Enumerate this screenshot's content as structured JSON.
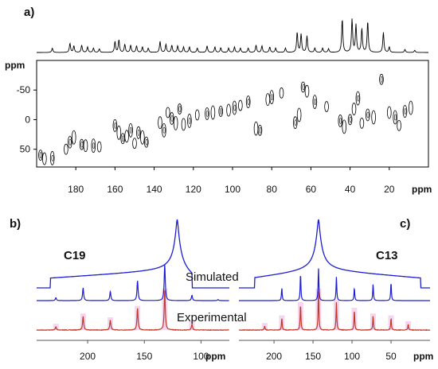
{
  "figure": {
    "panels": {
      "a": "a)",
      "b": "b)",
      "c": "c)"
    },
    "colors": {
      "black": "#000000",
      "blue": "#1c1cd6",
      "red": "#c0392b",
      "pink": "#f6d6ee",
      "axis": "#555555"
    }
  },
  "chart_data": [
    {
      "panel": "a",
      "type": "heatmap",
      "title": "",
      "xlabel": "ppm",
      "ylabel": "ppm",
      "xlim": [
        200,
        0
      ],
      "ylim": [
        -100,
        80
      ],
      "x_ticks": [
        180,
        160,
        140,
        120,
        100,
        80,
        60,
        40,
        20
      ],
      "y_ticks": [
        -50,
        0,
        50
      ],
      "projection_peaks": [
        {
          "ppm": 192,
          "height": 0.12
        },
        {
          "ppm": 183,
          "height": 0.25
        },
        {
          "ppm": 181,
          "height": 0.18
        },
        {
          "ppm": 177,
          "height": 0.2
        },
        {
          "ppm": 174,
          "height": 0.15
        },
        {
          "ppm": 171,
          "height": 0.12
        },
        {
          "ppm": 168,
          "height": 0.1
        },
        {
          "ppm": 160,
          "height": 0.3
        },
        {
          "ppm": 158,
          "height": 0.35
        },
        {
          "ppm": 155,
          "height": 0.22
        },
        {
          "ppm": 152,
          "height": 0.2
        },
        {
          "ppm": 149,
          "height": 0.18
        },
        {
          "ppm": 146,
          "height": 0.15
        },
        {
          "ppm": 143,
          "height": 0.12
        },
        {
          "ppm": 137,
          "height": 0.3
        },
        {
          "ppm": 134,
          "height": 0.22
        },
        {
          "ppm": 131,
          "height": 0.2
        },
        {
          "ppm": 128,
          "height": 0.18
        },
        {
          "ppm": 125,
          "height": 0.15
        },
        {
          "ppm": 122,
          "height": 0.15
        },
        {
          "ppm": 118,
          "height": 0.12
        },
        {
          "ppm": 113,
          "height": 0.18
        },
        {
          "ppm": 109,
          "height": 0.15
        },
        {
          "ppm": 106,
          "height": 0.13
        },
        {
          "ppm": 102,
          "height": 0.12
        },
        {
          "ppm": 99,
          "height": 0.15
        },
        {
          "ppm": 96,
          "height": 0.12
        },
        {
          "ppm": 92,
          "height": 0.12
        },
        {
          "ppm": 88,
          "height": 0.2
        },
        {
          "ppm": 85,
          "height": 0.18
        },
        {
          "ppm": 81,
          "height": 0.15
        },
        {
          "ppm": 78,
          "height": 0.12
        },
        {
          "ppm": 73,
          "height": 0.12
        },
        {
          "ppm": 67,
          "height": 0.55
        },
        {
          "ppm": 65,
          "height": 0.5
        },
        {
          "ppm": 62,
          "height": 0.45
        },
        {
          "ppm": 58,
          "height": 0.12
        },
        {
          "ppm": 54,
          "height": 0.12
        },
        {
          "ppm": 51,
          "height": 0.1
        },
        {
          "ppm": 44,
          "height": 0.92
        },
        {
          "ppm": 39,
          "height": 0.9
        },
        {
          "ppm": 37,
          "height": 0.75
        },
        {
          "ppm": 34,
          "height": 0.65
        },
        {
          "ppm": 31,
          "height": 0.85
        },
        {
          "ppm": 23,
          "height": 0.55
        },
        {
          "ppm": 20,
          "height": 0.15
        },
        {
          "ppm": 12,
          "height": 0.08
        },
        {
          "ppm": 7,
          "height": 0.06
        }
      ],
      "contours": [
        {
          "x": 198,
          "y": 60
        },
        {
          "x": 196,
          "y": 66
        },
        {
          "x": 192,
          "y": 65
        },
        {
          "x": 185,
          "y": 50
        },
        {
          "x": 183,
          "y": 38
        },
        {
          "x": 181,
          "y": 30
        },
        {
          "x": 177,
          "y": 42
        },
        {
          "x": 175,
          "y": 44
        },
        {
          "x": 171,
          "y": 44
        },
        {
          "x": 168,
          "y": 46
        },
        {
          "x": 160,
          "y": 10
        },
        {
          "x": 158,
          "y": 22
        },
        {
          "x": 156,
          "y": 32
        },
        {
          "x": 154,
          "y": 28
        },
        {
          "x": 152,
          "y": 18
        },
        {
          "x": 150,
          "y": 40
        },
        {
          "x": 148,
          "y": 22
        },
        {
          "x": 146,
          "y": 30
        },
        {
          "x": 144,
          "y": 38
        },
        {
          "x": 137,
          "y": 5
        },
        {
          "x": 135,
          "y": 18
        },
        {
          "x": 133,
          "y": -12
        },
        {
          "x": 131,
          "y": -2
        },
        {
          "x": 129,
          "y": 6
        },
        {
          "x": 127,
          "y": -18
        },
        {
          "x": 125,
          "y": 8
        },
        {
          "x": 122,
          "y": 2
        },
        {
          "x": 118,
          "y": -8
        },
        {
          "x": 113,
          "y": -10
        },
        {
          "x": 110,
          "y": -12
        },
        {
          "x": 106,
          "y": -14
        },
        {
          "x": 102,
          "y": -16
        },
        {
          "x": 99,
          "y": -20
        },
        {
          "x": 96,
          "y": -24
        },
        {
          "x": 92,
          "y": -30
        },
        {
          "x": 88,
          "y": 15
        },
        {
          "x": 86,
          "y": 18
        },
        {
          "x": 82,
          "y": -34
        },
        {
          "x": 80,
          "y": -38
        },
        {
          "x": 75,
          "y": -45
        },
        {
          "x": 68,
          "y": 5
        },
        {
          "x": 66,
          "y": -8
        },
        {
          "x": 64,
          "y": -55
        },
        {
          "x": 62,
          "y": -48
        },
        {
          "x": 58,
          "y": -30
        },
        {
          "x": 52,
          "y": -22
        },
        {
          "x": 45,
          "y": 2
        },
        {
          "x": 43,
          "y": 12
        },
        {
          "x": 40,
          "y": 0
        },
        {
          "x": 38,
          "y": -18
        },
        {
          "x": 36,
          "y": -36
        },
        {
          "x": 34,
          "y": 6
        },
        {
          "x": 31,
          "y": -8
        },
        {
          "x": 28,
          "y": -4
        },
        {
          "x": 24,
          "y": -68
        },
        {
          "x": 20,
          "y": -12
        },
        {
          "x": 17,
          "y": -4
        },
        {
          "x": 15,
          "y": 10
        },
        {
          "x": 12,
          "y": -14
        },
        {
          "x": 9,
          "y": -20
        }
      ]
    },
    {
      "panel": "b",
      "type": "line",
      "title": "C19",
      "xlabel": "ppm",
      "xlim": [
        245,
        75
      ],
      "x_ticks": [
        200,
        150,
        100
      ],
      "labels": [
        "Simulated",
        "Experimental"
      ],
      "series": [
        {
          "name": "Simulated",
          "kind": "powder",
          "color": "#1c1cd6",
          "range": [
            233,
            108
          ],
          "peak_ppm": 121
        },
        {
          "name": "Simulated",
          "kind": "sidebands",
          "color": "#1c1cd6",
          "peaks": [
            {
              "ppm": 228,
              "h": 0.08
            },
            {
              "ppm": 204,
              "h": 0.35
            },
            {
              "ppm": 180,
              "h": 0.25
            },
            {
              "ppm": 156,
              "h": 0.55
            },
            {
              "ppm": 132,
              "h": 1.0
            },
            {
              "ppm": 108,
              "h": 0.15
            },
            {
              "ppm": 85,
              "h": 0.03
            }
          ]
        },
        {
          "name": "Experimental",
          "kind": "sidebands",
          "color": "#c0392b",
          "peaks": [
            {
              "ppm": 228,
              "h": 0.08
            },
            {
              "ppm": 204,
              "h": 0.35
            },
            {
              "ppm": 180,
              "h": 0.25
            },
            {
              "ppm": 156,
              "h": 0.55
            },
            {
              "ppm": 132,
              "h": 1.0
            },
            {
              "ppm": 108,
              "h": 0.15
            }
          ]
        }
      ]
    },
    {
      "panel": "c",
      "type": "line",
      "title": "C13",
      "xlabel": "ppm",
      "xlim": [
        245,
        0
      ],
      "x_ticks": [
        200,
        150,
        100,
        50
      ],
      "series": [
        {
          "name": "Simulated",
          "kind": "powder",
          "color": "#1c1cd6",
          "range": [
            225,
            12
          ],
          "peak_ppm": 143
        },
        {
          "name": "Simulated",
          "kind": "sidebands",
          "color": "#1c1cd6",
          "peaks": [
            {
              "ppm": 190,
              "h": 0.35
            },
            {
              "ppm": 166,
              "h": 0.75
            },
            {
              "ppm": 143,
              "h": 0.9
            },
            {
              "ppm": 120,
              "h": 0.65
            },
            {
              "ppm": 97,
              "h": 0.35
            },
            {
              "ppm": 73,
              "h": 0.45
            },
            {
              "ppm": 50,
              "h": 0.5
            }
          ]
        },
        {
          "name": "Experimental",
          "kind": "sidebands",
          "color": "#c0392b",
          "peaks": [
            {
              "ppm": 212,
              "h": 0.1
            },
            {
              "ppm": 190,
              "h": 0.3
            },
            {
              "ppm": 166,
              "h": 0.65
            },
            {
              "ppm": 143,
              "h": 1.0
            },
            {
              "ppm": 120,
              "h": 0.7
            },
            {
              "ppm": 97,
              "h": 0.5
            },
            {
              "ppm": 73,
              "h": 0.35
            },
            {
              "ppm": 50,
              "h": 0.3
            },
            {
              "ppm": 28,
              "h": 0.15
            }
          ]
        }
      ]
    }
  ]
}
